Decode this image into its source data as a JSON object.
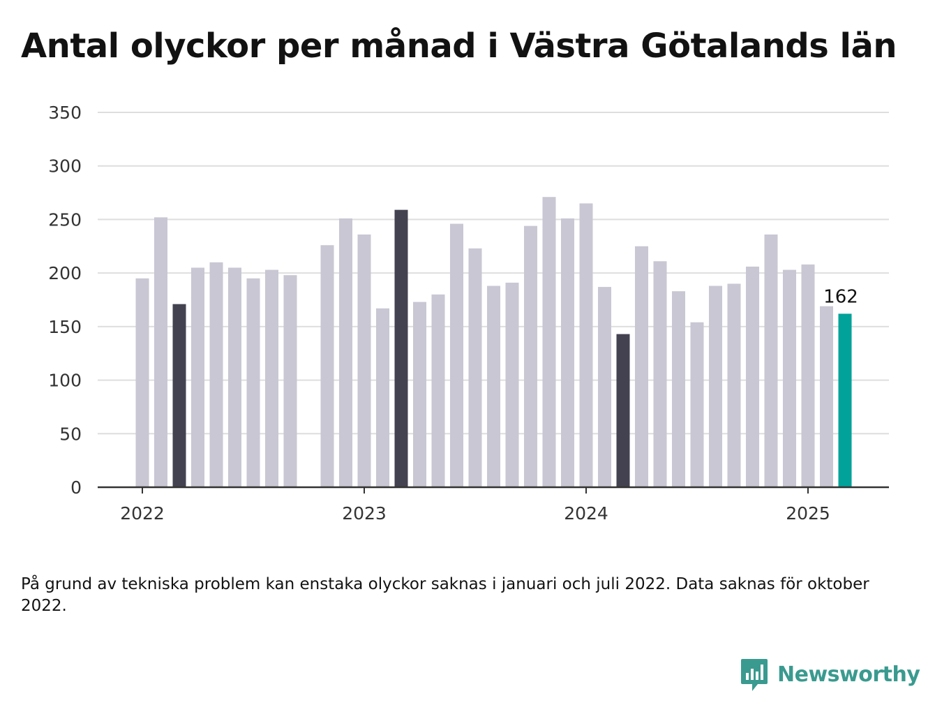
{
  "title": "Antal olyckor per månad i Västra Götalands län",
  "note": "På grund av tekniska problem kan enstaka olyckor saknas i januari och juli 2022. Data saknas för oktober 2022.",
  "brand": {
    "name": "Newsworthy",
    "icon": "newsworthy-logo-icon",
    "color": "#3a9a8f"
  },
  "colors": {
    "bar": "#c8c7d3",
    "highlight": "#434250",
    "latest": "#00a299",
    "grid": "#dedede",
    "axis": "#333333"
  },
  "chart_data": {
    "type": "bar",
    "x": [
      "2022-01",
      "2022-02",
      "2022-03",
      "2022-04",
      "2022-05",
      "2022-06",
      "2022-07",
      "2022-08",
      "2022-09",
      "2022-10",
      "2022-11",
      "2022-12",
      "2023-01",
      "2023-02",
      "2023-03",
      "2023-04",
      "2023-05",
      "2023-06",
      "2023-07",
      "2023-08",
      "2023-09",
      "2023-10",
      "2023-11",
      "2023-12",
      "2024-01",
      "2024-02",
      "2024-03",
      "2024-04",
      "2024-05",
      "2024-06",
      "2024-07",
      "2024-08",
      "2024-09",
      "2024-10",
      "2024-11",
      "2024-12",
      "2025-01",
      "2025-02",
      "2025-03"
    ],
    "values": [
      195,
      252,
      171,
      205,
      210,
      205,
      195,
      203,
      198,
      null,
      226,
      251,
      236,
      167,
      259,
      173,
      180,
      246,
      223,
      188,
      191,
      244,
      271,
      251,
      265,
      187,
      143,
      225,
      211,
      183,
      154,
      188,
      190,
      206,
      236,
      203,
      208,
      169,
      162
    ],
    "highlight": [
      "2022-03",
      "2023-03",
      "2024-03"
    ],
    "latest": "2025-03",
    "data_labels": [
      {
        "x": "2025-03",
        "text": "162"
      }
    ],
    "x_ticks": [
      "2022",
      "2023",
      "2024",
      "2025"
    ],
    "y_ticks": [
      0,
      50,
      100,
      150,
      200,
      250,
      300,
      350
    ],
    "ylim": [
      0,
      350
    ],
    "grid": true,
    "xlabel": "",
    "ylabel": ""
  }
}
